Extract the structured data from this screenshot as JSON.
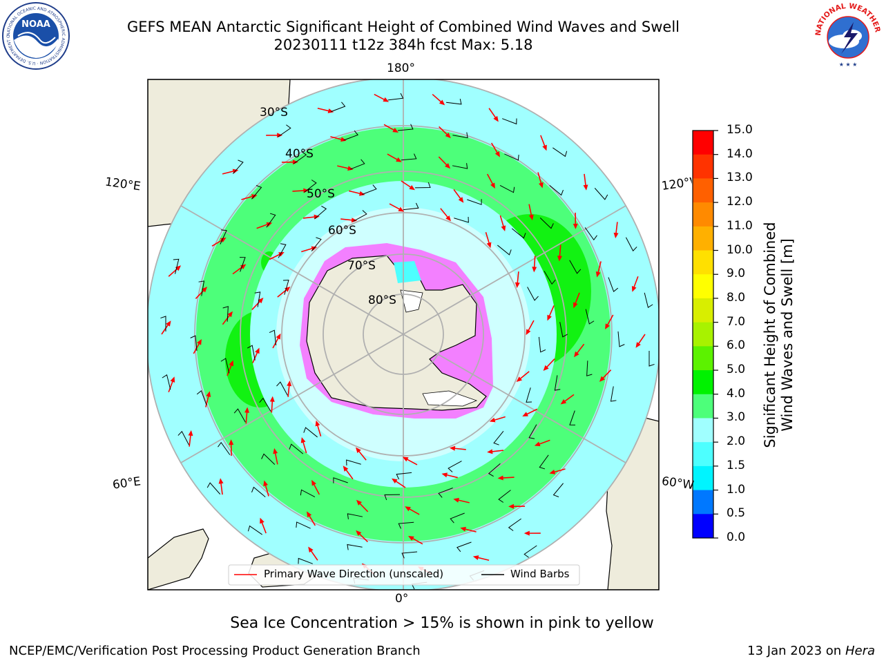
{
  "title": {
    "line1": "GEFS MEAN Antarctic Significant Height of Combined Wind Waves and Swell",
    "line2": "20230111 t12z 384h fcst   Max: 5.18"
  },
  "logos": {
    "noaa_text": "NOAA",
    "noaa_ring_text": "NATIONAL OCEANIC AND ATMOSPHERIC ADMINISTRATION · U.S. DEPARTMENT OF COMMERCE",
    "nws_ring_text": "NATIONAL WEATHER SERVICE"
  },
  "map": {
    "projection": "south-polar-stereographic",
    "longitude_labels": {
      "top": "180°",
      "bottom": "0°",
      "upper_left": "120°E",
      "lower_left": "60°E",
      "upper_right": "120°W",
      "lower_right": "60°W"
    },
    "latitude_labels": [
      "30°S",
      "40°S",
      "50°S",
      "60°S",
      "70°S",
      "80°S"
    ],
    "colors": {
      "land": "#eeecdc",
      "ocean_low": "#a0ffff",
      "ocean_mid": "#4dff7a",
      "ocean_high": "#12f212",
      "sea_ice": "#ff44ff",
      "arrow": "#ff0000",
      "barb": "#000000",
      "grid": "#b0b0b0"
    }
  },
  "legend": {
    "wave_direction": "Primary Wave Direction (unscaled)",
    "wind_barbs": "Wind Barbs"
  },
  "colorbar": {
    "label_line1": "Significant Height of Combined",
    "label_line2": "Wind Waves and Swell [m]",
    "ticks": [
      "0.0",
      "0.5",
      "1.0",
      "1.5",
      "2.0",
      "3.0",
      "4.0",
      "5.0",
      "6.0",
      "7.0",
      "8.0",
      "9.0",
      "10.0",
      "11.0",
      "12.0",
      "13.0",
      "14.0",
      "15.0"
    ],
    "colors": [
      "#0000ff",
      "#0078ff",
      "#00f4ff",
      "#4dffff",
      "#a0ffff",
      "#4dff7a",
      "#00f200",
      "#5cf200",
      "#a8f200",
      "#d8ee00",
      "#ffff00",
      "#ffe000",
      "#ffb000",
      "#ff8a00",
      "#ff6000",
      "#ff3300",
      "#ff0000"
    ]
  },
  "note": "Sea Ice Concentration > 15% is shown in pink to yellow",
  "footer": {
    "left": "NCEP/EMC/Verification Post Processing Product Generation Branch",
    "right_date": "13 Jan 2023 on ",
    "right_host": "Hera"
  }
}
